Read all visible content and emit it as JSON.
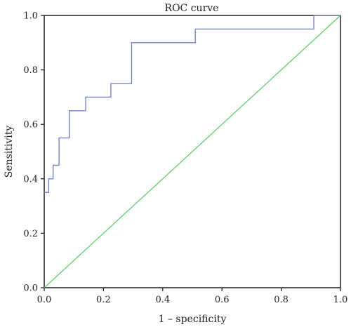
{
  "chart_data": {
    "type": "line",
    "title": "ROC curve",
    "xlabel": "1 – specificity",
    "ylabel": "Sensitivity",
    "xlim": [
      0,
      1
    ],
    "ylim": [
      0,
      1
    ],
    "xticks": [
      "0.0",
      "0.2",
      "0.4",
      "0.6",
      "0.8",
      "1.0"
    ],
    "yticks": [
      "0.0",
      "0.2",
      "0.4",
      "0.6",
      "0.8",
      "1.0"
    ],
    "grid": false,
    "series": [
      {
        "color": "#6a7fc4",
        "step": true,
        "points": [
          [
            0.0,
            0.35
          ],
          [
            0.015,
            0.35
          ],
          [
            0.015,
            0.4
          ],
          [
            0.03,
            0.4
          ],
          [
            0.03,
            0.45
          ],
          [
            0.05,
            0.45
          ],
          [
            0.05,
            0.55
          ],
          [
            0.085,
            0.55
          ],
          [
            0.085,
            0.65
          ],
          [
            0.14,
            0.65
          ],
          [
            0.14,
            0.7
          ],
          [
            0.225,
            0.7
          ],
          [
            0.225,
            0.75
          ],
          [
            0.295,
            0.75
          ],
          [
            0.295,
            0.9
          ],
          [
            0.51,
            0.9
          ],
          [
            0.51,
            0.95
          ],
          [
            0.91,
            0.95
          ],
          [
            0.91,
            1.0
          ],
          [
            1.0,
            1.0
          ]
        ]
      },
      {
        "color": "#5fcf6a",
        "step": false,
        "points": [
          [
            0.0,
            0.0
          ],
          [
            1.0,
            1.0
          ]
        ]
      }
    ]
  }
}
